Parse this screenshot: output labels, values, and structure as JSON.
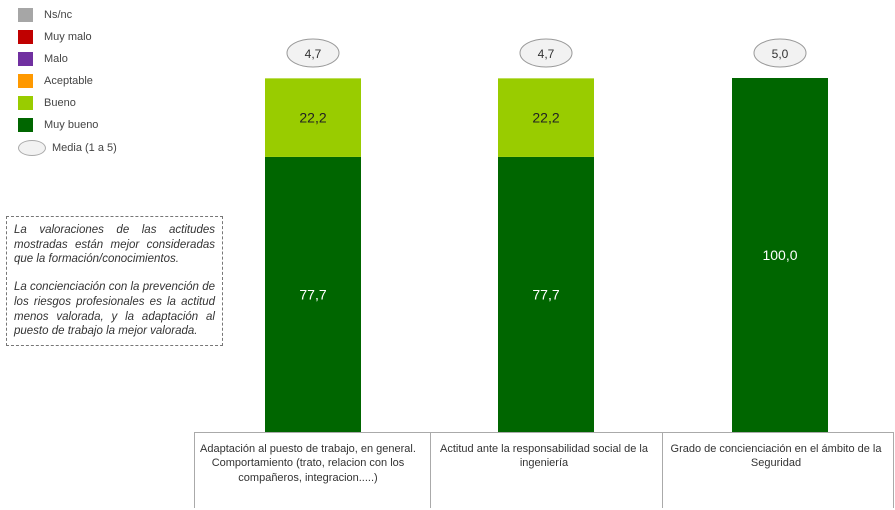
{
  "legend": {
    "items": [
      {
        "label": "Ns/nc",
        "color": "#a6a6a6"
      },
      {
        "label": "Muy malo",
        "color": "#c00000"
      },
      {
        "label": "Malo",
        "color": "#7030a0"
      },
      {
        "label": "Aceptable",
        "color": "#ff9900"
      },
      {
        "label": "Bueno",
        "color": "#99cc00"
      },
      {
        "label": "Muy bueno",
        "color": "#006600"
      }
    ],
    "media_label": "Media  (1 a 5)"
  },
  "note": {
    "paragraph1": "La valoraciones de las actitudes mostradas están mejor consideradas que la formación/conocimientos.",
    "paragraph2": "La concienciación con la prevención de los riesgos profesionales es la actitud menos valorada, y la adaptación al puesto de trabajo la mejor valorada."
  },
  "chart_data": {
    "type": "bar",
    "stacked": true,
    "categories": [
      "Adaptación al puesto de trabajo, en general. Comportamiento (trato, relacion con los compañeros, integracion.....)",
      "Actitud ante la responsabilidad social de la ingeniería",
      "Grado de concienciación en el ámbito de la Seguridad"
    ],
    "series": [
      {
        "name": "Muy bueno",
        "color": "#006600",
        "values": [
          77.7,
          77.7,
          100.0
        ],
        "labels": [
          "77,7",
          "77,7",
          "100,0"
        ]
      },
      {
        "name": "Bueno",
        "color": "#99cc00",
        "values": [
          22.2,
          22.2,
          0
        ],
        "labels": [
          "22,2",
          "22,2",
          ""
        ]
      }
    ],
    "means": [
      "4,7",
      "4,7",
      "5,0"
    ],
    "ylim": [
      0,
      100
    ]
  }
}
